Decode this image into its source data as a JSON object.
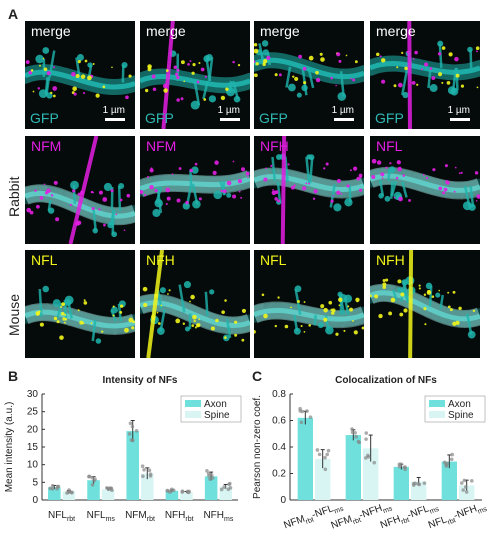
{
  "panel_letters": {
    "a": "A",
    "b": "B",
    "c": "C"
  },
  "row_labels": {
    "rabbit": "Rabbit",
    "mouse": "Mouse"
  },
  "colors": {
    "cyan": "#1fb5ad",
    "magenta": "#e31ee3",
    "yellow": "#f1f51a",
    "background": "#050a0b",
    "axon_fill": "#6fe0dc",
    "spine_fill": "#d8f5f3"
  },
  "grid": {
    "row1": [
      "merge",
      "merge",
      "merge",
      "merge"
    ],
    "row1_sub": "GFP",
    "scale": "1 µm",
    "row2": [
      "NFM",
      "NFM",
      "NFH",
      "NFL"
    ],
    "row3": [
      "NFL",
      "NFH",
      "NFL",
      "NFH"
    ]
  },
  "chart_data": [
    {
      "type": "bar",
      "title": "Intensity of NFs",
      "ylabel": "Mean intensity (a.u.)",
      "ylim": [
        0,
        30
      ],
      "yticks": [
        "0",
        "5",
        "10",
        "15",
        "20",
        "25",
        "30"
      ],
      "categories": [
        {
          "base": "NFL",
          "sub": "rbt"
        },
        {
          "base": "NFL",
          "sub": "ms"
        },
        {
          "base": "NFM",
          "sub": "rbt"
        },
        {
          "base": "NFH",
          "sub": "rbt"
        },
        {
          "base": "NFH",
          "sub": "ms"
        }
      ],
      "series": [
        {
          "name": "Axon",
          "values": [
            3.6,
            5.6,
            19.5,
            2.6,
            6.7
          ],
          "errors": [
            0.5,
            1.0,
            3.0,
            0.3,
            1.2
          ]
        },
        {
          "name": "Spine",
          "values": [
            2.4,
            3.0,
            7.5,
            2.2,
            3.8
          ],
          "errors": [
            0.3,
            0.4,
            1.6,
            0.2,
            0.6
          ]
        }
      ],
      "legend": "top-right"
    },
    {
      "type": "bar",
      "title": "Colocalization of NFs",
      "ylabel": "Pearson non-zero coef.",
      "ylim": [
        0,
        0.8
      ],
      "yticks": [
        "0",
        "0.2",
        "0.4",
        "0.6",
        "0.8"
      ],
      "categories": [
        [
          {
            "base": "NFM",
            "sub": "rbt"
          },
          {
            "base": "-NFL",
            "sub": "ms"
          }
        ],
        [
          {
            "base": "NFM",
            "sub": "rbt"
          },
          {
            "base": "-NFH",
            "sub": "ms"
          }
        ],
        [
          {
            "base": "NFH",
            "sub": "rbt"
          },
          {
            "base": "-NFL",
            "sub": "ms"
          }
        ],
        [
          {
            "base": "NFL",
            "sub": "rbt"
          },
          {
            "base": "-NFH",
            "sub": "ms"
          }
        ]
      ],
      "series": [
        {
          "name": "Axon",
          "values": [
            0.62,
            0.49,
            0.25,
            0.29
          ],
          "errors": [
            0.05,
            0.04,
            0.02,
            0.05
          ]
        },
        {
          "name": "Spine",
          "values": [
            0.31,
            0.39,
            0.14,
            0.11
          ],
          "errors": [
            0.07,
            0.1,
            0.03,
            0.04
          ]
        }
      ],
      "legend": "top-right"
    }
  ]
}
